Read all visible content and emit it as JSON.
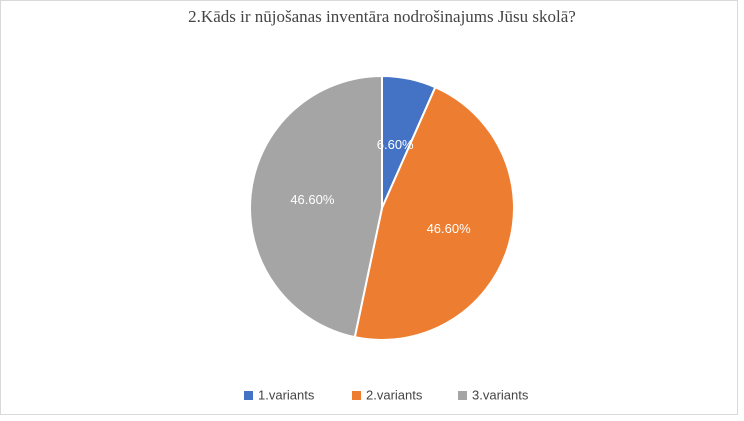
{
  "chart_data": {
    "type": "pie",
    "title": "2.Kāds ir nūjošanas inventāra nodrošinajums Jūsu skolā?",
    "categories": [
      "1.variants",
      "2.variants",
      "3.variants"
    ],
    "values": [
      6.6,
      46.6,
      46.6
    ],
    "value_labels": [
      "6.60%",
      "46.60%",
      "46.60%"
    ],
    "colors": [
      "#4472c4",
      "#ed7d31",
      "#a5a5a5"
    ],
    "legend": "bottom"
  }
}
